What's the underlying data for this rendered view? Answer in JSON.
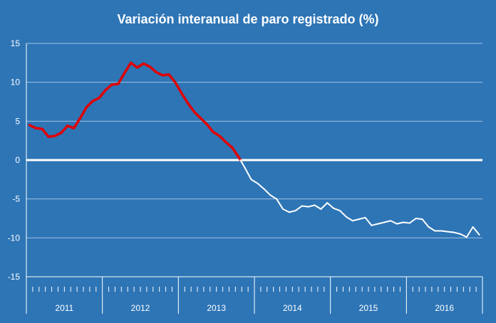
{
  "chart_data": {
    "type": "line",
    "title": "Variación interanual de paro registrado (%)",
    "xlabel": "",
    "ylabel": "",
    "ylim": [
      -15,
      15
    ],
    "yticks": [
      15,
      10,
      5,
      0,
      -5,
      -10,
      -15
    ],
    "grid": true,
    "categories": [
      "2011",
      "2012",
      "2013",
      "2014",
      "2015",
      "2016"
    ],
    "x": [
      "2011-01",
      "2011-02",
      "2011-03",
      "2011-04",
      "2011-05",
      "2011-06",
      "2011-07",
      "2011-08",
      "2011-09",
      "2011-10",
      "2011-11",
      "2011-12",
      "2012-01",
      "2012-02",
      "2012-03",
      "2012-04",
      "2012-05",
      "2012-06",
      "2012-07",
      "2012-08",
      "2012-09",
      "2012-10",
      "2012-11",
      "2012-12",
      "2013-01",
      "2013-02",
      "2013-03",
      "2013-04",
      "2013-05",
      "2013-06",
      "2013-07",
      "2013-08",
      "2013-09",
      "2013-10",
      "2013-11",
      "2013-12",
      "2014-01",
      "2014-02",
      "2014-03",
      "2014-04",
      "2014-05",
      "2014-06",
      "2014-07",
      "2014-08",
      "2014-09",
      "2014-10",
      "2014-11",
      "2014-12",
      "2015-01",
      "2015-02",
      "2015-03",
      "2015-04",
      "2015-05",
      "2015-06",
      "2015-07",
      "2015-08",
      "2015-09",
      "2015-10",
      "2015-11",
      "2015-12",
      "2016-01",
      "2016-02",
      "2016-03",
      "2016-04",
      "2016-05",
      "2016-06",
      "2016-07",
      "2016-08",
      "2016-09",
      "2016-10",
      "2016-11",
      "2016-12"
    ],
    "series": [
      {
        "name": "Variación interanual de paro registrado",
        "color_positive": "#e00000",
        "color_negative": "#ffffff",
        "values": [
          4.5,
          4.1,
          4.0,
          3.0,
          3.1,
          3.5,
          4.4,
          4.1,
          5.4,
          6.8,
          7.6,
          8.0,
          9.0,
          9.7,
          9.8,
          11.2,
          12.5,
          11.9,
          12.4,
          12.0,
          11.3,
          10.9,
          11.0,
          10.0,
          8.6,
          7.3,
          6.2,
          5.4,
          4.6,
          3.6,
          3.1,
          2.3,
          1.6,
          0.4,
          -1.0,
          -2.5,
          -3.0,
          -3.7,
          -4.5,
          -5.0,
          -6.3,
          -6.7,
          -6.5,
          -5.9,
          -6.0,
          -5.8,
          -6.3,
          -5.5,
          -6.2,
          -6.5,
          -7.3,
          -7.8,
          -7.6,
          -7.4,
          -8.4,
          -8.2,
          -8.0,
          -7.8,
          -8.2,
          -8.0,
          -8.1,
          -7.5,
          -7.6,
          -8.6,
          -9.1,
          -9.1,
          -9.2,
          -9.3,
          -9.5,
          -9.9,
          -8.6,
          -9.6
        ]
      }
    ]
  }
}
